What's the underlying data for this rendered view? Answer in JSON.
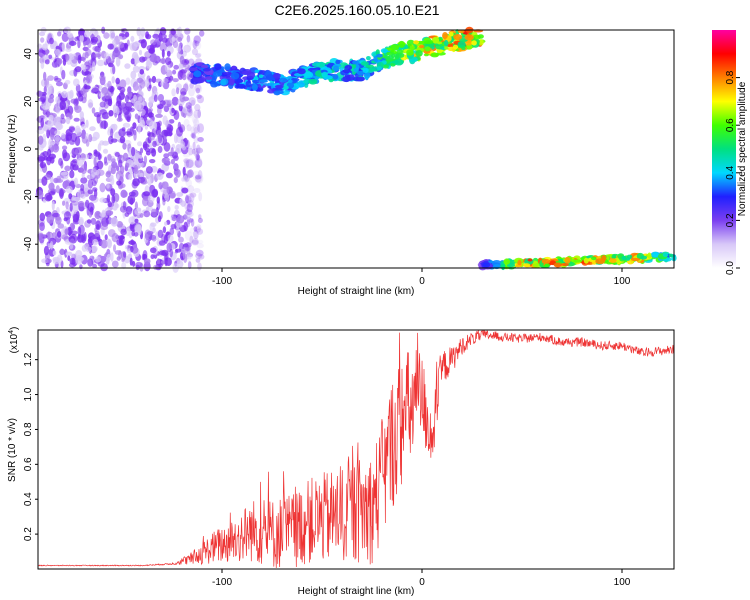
{
  "title": "C2E6.2025.160.05.10.E21",
  "chart_data": [
    {
      "type": "heatmap",
      "name": "spectrogram",
      "xlabel": "Height of straight line (km)",
      "ylabel": "Frequency (Hz)",
      "xlim": [
        -192,
        126
      ],
      "ylim": [
        -50,
        50
      ],
      "xticks": [
        -100,
        0,
        100
      ],
      "yticks": [
        -40,
        -20,
        0,
        20,
        40
      ],
      "colorbar": {
        "label": "Normalized spectral amplitude",
        "range": [
          0,
          1
        ],
        "ticks": [
          0.0,
          0.2,
          0.4,
          0.6,
          0.8
        ],
        "colors": [
          "#ffffff",
          "#d8c8f8",
          "#7b3ff0",
          "#2020ff",
          "#00d8ff",
          "#00e080",
          "#40ff00",
          "#ffff00",
          "#ff8000",
          "#ff0000",
          "#ff00a0"
        ]
      },
      "features": [
        {
          "label": "noise",
          "x_range": [
            -192,
            -118
          ],
          "freq_range": [
            -50,
            50
          ],
          "amplitude": 0.15
        },
        {
          "label": "upper signal band",
          "x": [
            -115,
            -90,
            -70,
            -50,
            -30,
            -20,
            -10,
            0,
            10,
            20,
            30
          ],
          "freq": [
            32,
            30,
            27,
            33,
            33,
            38,
            40,
            42,
            44,
            46,
            48
          ],
          "amplitude": [
            0.35,
            0.4,
            0.45,
            0.5,
            0.5,
            0.6,
            0.7,
            0.8,
            0.85,
            0.9,
            0.95
          ]
        },
        {
          "label": "lower signal band",
          "x": [
            30,
            50,
            70,
            90,
            110,
            126
          ],
          "freq": [
            -49,
            -48,
            -47.5,
            -46.5,
            -46,
            -45
          ],
          "amplitude": [
            0.3,
            0.9,
            0.9,
            0.85,
            0.8,
            0.5
          ]
        }
      ]
    },
    {
      "type": "line",
      "name": "snr",
      "xlabel": "Height of straight line (km)",
      "ylabel": "SNR (10 * v/v)",
      "y_multiplier": "(x10",
      "y_multiplier_exp": "4",
      "y_multiplier_close": ")",
      "xlim": [
        -192,
        126
      ],
      "ylim": [
        0,
        1.37
      ],
      "xticks": [
        -100,
        0,
        100
      ],
      "yticks": [
        0.2,
        0.4,
        0.6,
        0.8,
        1.0,
        1.2
      ],
      "color": "#ee3333",
      "series": [
        {
          "x": [
            -192,
            -180,
            -160,
            -140,
            -125,
            -115,
            -105,
            -95,
            -85,
            -75,
            -65,
            -55,
            -45,
            -35,
            -25,
            -20,
            -15,
            -12,
            -8,
            -5,
            -2,
            0,
            5,
            10,
            15,
            20,
            25,
            30,
            35,
            40,
            50,
            60,
            70,
            80,
            90,
            100,
            110,
            120,
            126
          ],
          "y": [
            0.02,
            0.02,
            0.02,
            0.02,
            0.03,
            0.06,
            0.12,
            0.16,
            0.22,
            0.2,
            0.22,
            0.28,
            0.3,
            0.33,
            0.35,
            0.5,
            0.72,
            0.8,
            0.9,
            0.92,
            1.0,
            0.98,
            0.75,
            1.15,
            1.2,
            1.28,
            1.32,
            1.34,
            1.34,
            1.33,
            1.32,
            1.33,
            1.3,
            1.3,
            1.28,
            1.28,
            1.24,
            1.25,
            1.26
          ],
          "noise": [
            0.002,
            0.002,
            0.002,
            0.002,
            0.004,
            0.03,
            0.07,
            0.1,
            0.14,
            0.16,
            0.17,
            0.19,
            0.21,
            0.23,
            0.25,
            0.28,
            0.3,
            0.3,
            0.28,
            0.26,
            0.22,
            0.2,
            0.15,
            0.08,
            0.06,
            0.04,
            0.03,
            0.025,
            0.02,
            0.02,
            0.02,
            0.02,
            0.02,
            0.02,
            0.02,
            0.02,
            0.02,
            0.02,
            0.02
          ]
        }
      ]
    }
  ]
}
